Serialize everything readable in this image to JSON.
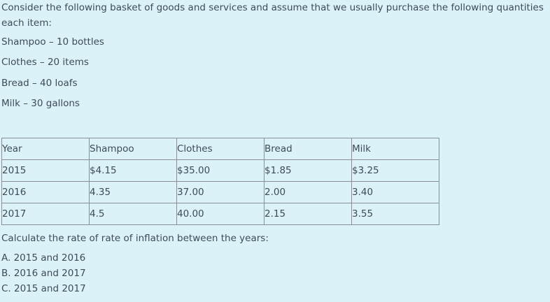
{
  "intro": "Consider the following basket of goods and services and assume that we usually purchase the following quantities each item:",
  "items": [
    "Shampoo – 10 bottles",
    "Clothes – 20 items",
    "Bread – 40 loafs",
    "Milk – 30 gallons"
  ],
  "table": {
    "header": [
      "Year",
      "Shampoo",
      "Clothes",
      "Bread",
      "Milk"
    ],
    "rows": [
      [
        "2015",
        "$4.15",
        "$35.00",
        "$1.85",
        "$3.25"
      ],
      [
        "2016",
        "4.35",
        "37.00",
        "2.00",
        "3.40"
      ],
      [
        "2017",
        "4.5",
        "40.00",
        "2.15",
        "3.55"
      ]
    ]
  },
  "question": "Calculate the rate of rate of inflation between the years:",
  "options": [
    "A. 2015 and 2016",
    "B. 2016 and 2017",
    "C. 2015 and 2017"
  ]
}
